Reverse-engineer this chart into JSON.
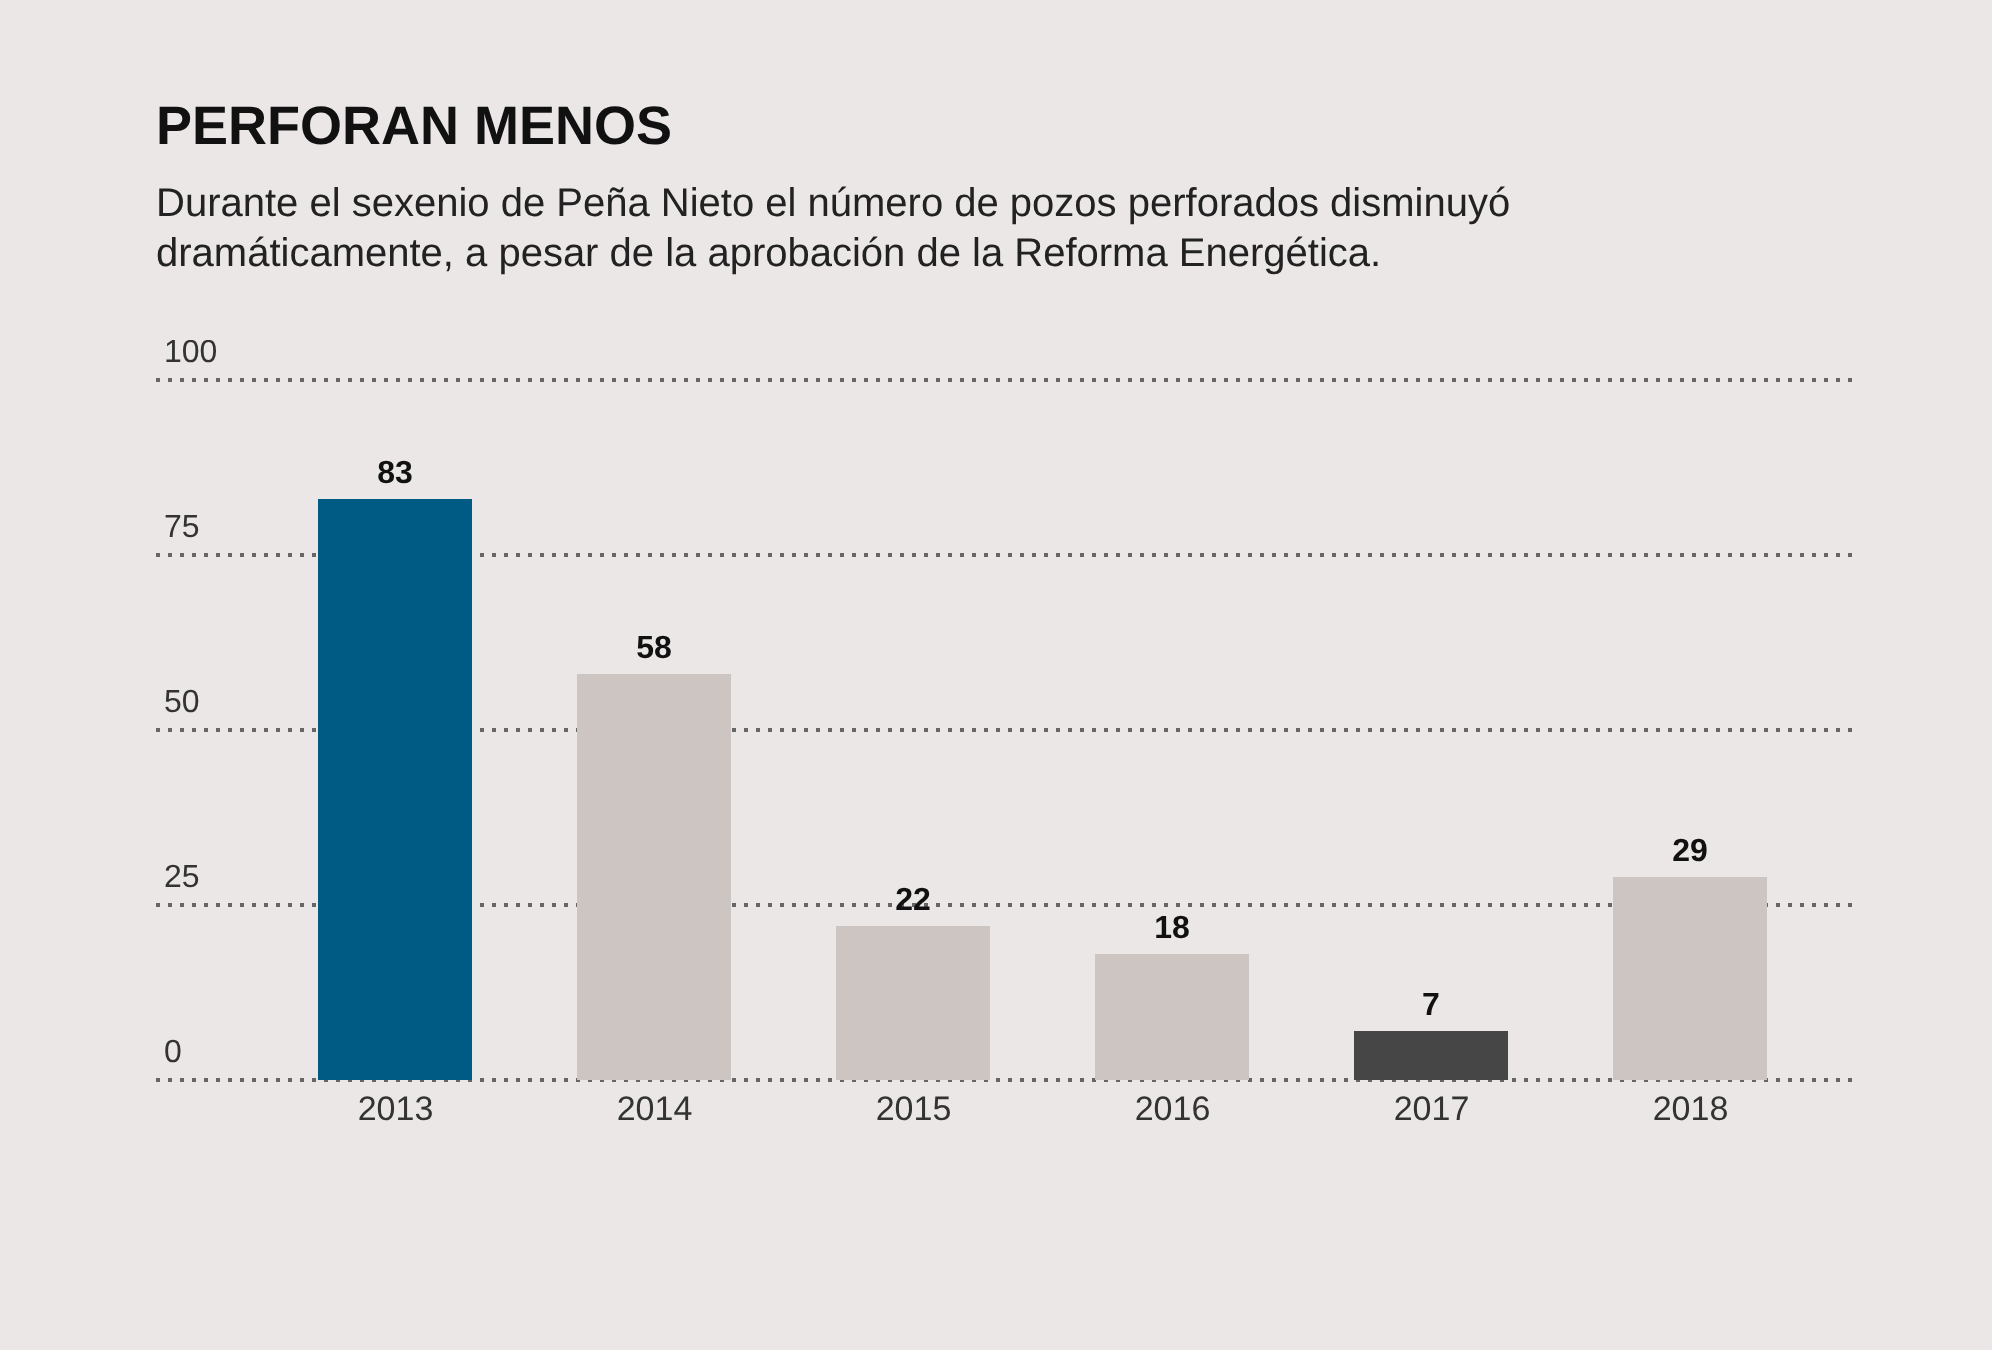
{
  "chart_data": {
    "type": "bar",
    "title": "PERFORAN MENOS",
    "subtitle": "Durante el sexenio de Peña Nieto el número de pozos perforados disminuyó dramáticamente, a pesar de la aprobación de la Reforma Energética.",
    "categories": [
      "2013",
      "2014",
      "2015",
      "2016",
      "2017",
      "2018"
    ],
    "values": [
      83,
      58,
      22,
      18,
      7,
      29
    ],
    "colors": [
      "#005b84",
      "#cdc5c2",
      "#cdc5c2",
      "#cdc5c2",
      "#464646",
      "#cdc5c2"
    ],
    "ylim": [
      0,
      100
    ],
    "yticks": [
      0,
      25,
      50,
      75,
      100
    ],
    "grid": "y",
    "data_labels": true
  }
}
